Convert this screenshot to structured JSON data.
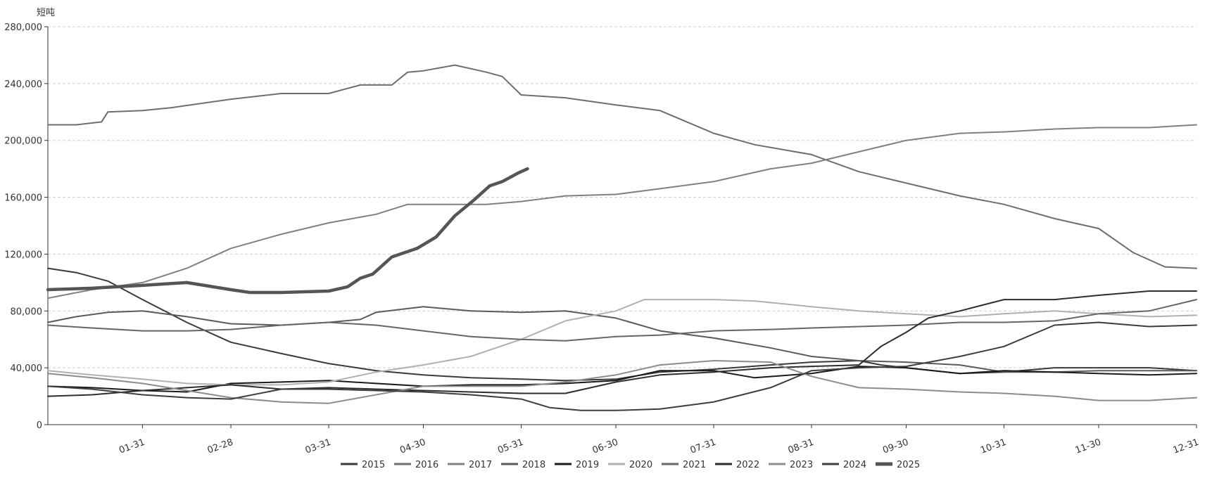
{
  "chart_data": {
    "type": "line",
    "title": "",
    "xlabel": "",
    "ylabel": "短吨",
    "ylim": [
      0,
      280000
    ],
    "yticks": [
      0,
      40000,
      80000,
      120000,
      160000,
      200000,
      240000,
      280000
    ],
    "ytick_labels": [
      "0",
      "40,000",
      "80,000",
      "120,000",
      "160,000",
      "200,000",
      "240,000",
      "280,000"
    ],
    "xlim": [
      1,
      365
    ],
    "xticks": [
      31,
      59,
      90,
      120,
      151,
      181,
      212,
      243,
      273,
      304,
      334,
      365
    ],
    "xtick_labels": [
      "01-31",
      "02-28",
      "03-31",
      "04-30",
      "05-31",
      "06-30",
      "07-31",
      "08-31",
      "09-30",
      "10-31",
      "11-30",
      "12-31"
    ],
    "grid": true,
    "legend_position": "bottom-center",
    "series": [
      {
        "name": "2015",
        "color": "#3a3a3a",
        "width": 2,
        "points": [
          [
            1,
            110000
          ],
          [
            10,
            107000
          ],
          [
            20,
            101000
          ],
          [
            31,
            88000
          ],
          [
            45,
            72000
          ],
          [
            59,
            58000
          ],
          [
            75,
            50000
          ],
          [
            90,
            43000
          ],
          [
            105,
            38000
          ],
          [
            120,
            35000
          ],
          [
            135,
            33000
          ],
          [
            151,
            32000
          ],
          [
            165,
            31000
          ],
          [
            181,
            32000
          ],
          [
            195,
            37000
          ],
          [
            212,
            39000
          ],
          [
            230,
            42000
          ],
          [
            243,
            44000
          ],
          [
            258,
            45000
          ],
          [
            265,
            42000
          ],
          [
            273,
            40000
          ],
          [
            290,
            36000
          ],
          [
            304,
            37000
          ],
          [
            320,
            40000
          ],
          [
            334,
            40000
          ],
          [
            350,
            40000
          ],
          [
            365,
            38000
          ]
        ]
      },
      {
        "name": "2016",
        "color": "#6e6e6e",
        "width": 2,
        "points": [
          [
            1,
            211000
          ],
          [
            10,
            211000
          ],
          [
            18,
            213000
          ],
          [
            20,
            220000
          ],
          [
            31,
            221000
          ],
          [
            40,
            223000
          ],
          [
            59,
            229000
          ],
          [
            75,
            233000
          ],
          [
            90,
            233000
          ],
          [
            100,
            239000
          ],
          [
            110,
            239000
          ],
          [
            115,
            248000
          ],
          [
            120,
            249000
          ],
          [
            130,
            253000
          ],
          [
            140,
            248000
          ],
          [
            145,
            245000
          ],
          [
            151,
            232000
          ],
          [
            165,
            230000
          ],
          [
            181,
            225000
          ],
          [
            195,
            221000
          ],
          [
            212,
            205000
          ],
          [
            225,
            197000
          ],
          [
            243,
            190000
          ],
          [
            258,
            178000
          ],
          [
            273,
            170000
          ],
          [
            290,
            161000
          ],
          [
            304,
            155000
          ],
          [
            320,
            145000
          ],
          [
            334,
            138000
          ],
          [
            345,
            121000
          ],
          [
            355,
            111000
          ],
          [
            365,
            110000
          ]
        ]
      },
      {
        "name": "2017",
        "color": "#808080",
        "width": 2,
        "points": [
          [
            1,
            89000
          ],
          [
            15,
            95000
          ],
          [
            31,
            100000
          ],
          [
            45,
            110000
          ],
          [
            59,
            124000
          ],
          [
            75,
            134000
          ],
          [
            90,
            142000
          ],
          [
            105,
            148000
          ],
          [
            115,
            155000
          ],
          [
            130,
            155000
          ],
          [
            140,
            155000
          ],
          [
            151,
            157000
          ],
          [
            165,
            161000
          ],
          [
            181,
            162000
          ],
          [
            195,
            166000
          ],
          [
            212,
            171000
          ],
          [
            230,
            180000
          ],
          [
            243,
            184000
          ],
          [
            258,
            192000
          ],
          [
            273,
            200000
          ],
          [
            290,
            205000
          ],
          [
            304,
            206000
          ],
          [
            320,
            208000
          ],
          [
            334,
            209000
          ],
          [
            350,
            209000
          ],
          [
            365,
            211000
          ]
        ]
      },
      {
        "name": "2018",
        "color": "#5a5a5a",
        "width": 2,
        "points": [
          [
            1,
            72000
          ],
          [
            10,
            76000
          ],
          [
            20,
            79000
          ],
          [
            31,
            80000
          ],
          [
            45,
            76000
          ],
          [
            59,
            71000
          ],
          [
            75,
            70000
          ],
          [
            90,
            72000
          ],
          [
            100,
            74000
          ],
          [
            105,
            79000
          ],
          [
            120,
            83000
          ],
          [
            135,
            80000
          ],
          [
            151,
            79000
          ],
          [
            165,
            80000
          ],
          [
            181,
            75000
          ],
          [
            195,
            66000
          ],
          [
            212,
            61000
          ],
          [
            230,
            54000
          ],
          [
            243,
            48000
          ],
          [
            258,
            45000
          ],
          [
            273,
            44000
          ],
          [
            290,
            42000
          ],
          [
            304,
            37000
          ],
          [
            320,
            37000
          ],
          [
            334,
            38000
          ],
          [
            350,
            38000
          ],
          [
            365,
            38000
          ]
        ]
      },
      {
        "name": "2019",
        "color": "#1a1a1a",
        "width": 2,
        "points": [
          [
            1,
            27000
          ],
          [
            15,
            26000
          ],
          [
            31,
            24000
          ],
          [
            45,
            23000
          ],
          [
            59,
            29000
          ],
          [
            75,
            30000
          ],
          [
            90,
            31000
          ],
          [
            105,
            29000
          ],
          [
            120,
            27000
          ],
          [
            135,
            28000
          ],
          [
            151,
            28000
          ],
          [
            165,
            29000
          ],
          [
            181,
            31000
          ],
          [
            195,
            38000
          ],
          [
            212,
            38000
          ],
          [
            225,
            33000
          ],
          [
            243,
            36000
          ],
          [
            258,
            41000
          ],
          [
            273,
            40000
          ],
          [
            290,
            36000
          ],
          [
            304,
            38000
          ],
          [
            320,
            37000
          ],
          [
            334,
            36000
          ],
          [
            350,
            35000
          ],
          [
            365,
            36000
          ]
        ]
      },
      {
        "name": "2020",
        "color": "#b0b0b0",
        "width": 2,
        "points": [
          [
            1,
            38000
          ],
          [
            15,
            35000
          ],
          [
            31,
            32000
          ],
          [
            45,
            29000
          ],
          [
            59,
            28000
          ],
          [
            75,
            28000
          ],
          [
            90,
            30000
          ],
          [
            105,
            37000
          ],
          [
            120,
            42000
          ],
          [
            135,
            48000
          ],
          [
            151,
            60000
          ],
          [
            165,
            73000
          ],
          [
            181,
            80000
          ],
          [
            190,
            88000
          ],
          [
            212,
            88000
          ],
          [
            225,
            87000
          ],
          [
            243,
            83000
          ],
          [
            258,
            80000
          ],
          [
            273,
            78000
          ],
          [
            290,
            76000
          ],
          [
            304,
            78000
          ],
          [
            320,
            80000
          ],
          [
            334,
            78000
          ],
          [
            350,
            76000
          ],
          [
            365,
            77000
          ]
        ]
      },
      {
        "name": "2021",
        "color": "#666666",
        "width": 2,
        "points": [
          [
            1,
            70000
          ],
          [
            15,
            68000
          ],
          [
            31,
            66000
          ],
          [
            45,
            66000
          ],
          [
            59,
            67000
          ],
          [
            75,
            70000
          ],
          [
            90,
            72000
          ],
          [
            105,
            70000
          ],
          [
            120,
            66000
          ],
          [
            135,
            62000
          ],
          [
            151,
            60000
          ],
          [
            165,
            59000
          ],
          [
            181,
            62000
          ],
          [
            195,
            63000
          ],
          [
            212,
            66000
          ],
          [
            230,
            67000
          ],
          [
            243,
            68000
          ],
          [
            258,
            69000
          ],
          [
            273,
            70000
          ],
          [
            290,
            72000
          ],
          [
            304,
            72000
          ],
          [
            320,
            73000
          ],
          [
            334,
            78000
          ],
          [
            350,
            80000
          ],
          [
            365,
            88000
          ]
        ]
      },
      {
        "name": "2022",
        "color": "#2e2e2e",
        "width": 2,
        "points": [
          [
            1,
            20000
          ],
          [
            15,
            21000
          ],
          [
            31,
            24000
          ],
          [
            45,
            26000
          ],
          [
            59,
            28000
          ],
          [
            75,
            25000
          ],
          [
            90,
            26000
          ],
          [
            105,
            25000
          ],
          [
            120,
            24000
          ],
          [
            135,
            23000
          ],
          [
            151,
            22000
          ],
          [
            165,
            22000
          ],
          [
            181,
            30000
          ],
          [
            195,
            35000
          ],
          [
            212,
            37000
          ],
          [
            230,
            40000
          ],
          [
            243,
            41000
          ],
          [
            258,
            42000
          ],
          [
            265,
            55000
          ],
          [
            273,
            65000
          ],
          [
            280,
            75000
          ],
          [
            290,
            80000
          ],
          [
            304,
            88000
          ],
          [
            320,
            88000
          ],
          [
            334,
            91000
          ],
          [
            350,
            94000
          ],
          [
            365,
            94000
          ]
        ]
      },
      {
        "name": "2023",
        "color": "#8c8c8c",
        "width": 2,
        "points": [
          [
            1,
            36000
          ],
          [
            15,
            33000
          ],
          [
            31,
            29000
          ],
          [
            45,
            24000
          ],
          [
            59,
            19000
          ],
          [
            75,
            16000
          ],
          [
            90,
            15000
          ],
          [
            105,
            21000
          ],
          [
            120,
            27000
          ],
          [
            135,
            27000
          ],
          [
            151,
            27000
          ],
          [
            165,
            30000
          ],
          [
            181,
            35000
          ],
          [
            195,
            42000
          ],
          [
            212,
            45000
          ],
          [
            230,
            44000
          ],
          [
            243,
            34000
          ],
          [
            258,
            26000
          ],
          [
            273,
            25000
          ],
          [
            290,
            23000
          ],
          [
            304,
            22000
          ],
          [
            320,
            20000
          ],
          [
            334,
            17000
          ],
          [
            350,
            17000
          ],
          [
            365,
            19000
          ]
        ]
      },
      {
        "name": "2024",
        "color": "#3d3d3d",
        "width": 2,
        "points": [
          [
            1,
            27000
          ],
          [
            15,
            25000
          ],
          [
            31,
            21000
          ],
          [
            45,
            19000
          ],
          [
            59,
            18000
          ],
          [
            75,
            25000
          ],
          [
            90,
            25000
          ],
          [
            105,
            24000
          ],
          [
            120,
            23000
          ],
          [
            135,
            21000
          ],
          [
            151,
            18000
          ],
          [
            160,
            12000
          ],
          [
            170,
            10000
          ],
          [
            181,
            10000
          ],
          [
            195,
            11000
          ],
          [
            212,
            16000
          ],
          [
            230,
            26000
          ],
          [
            243,
            38000
          ],
          [
            258,
            40000
          ],
          [
            273,
            41000
          ],
          [
            290,
            48000
          ],
          [
            304,
            55000
          ],
          [
            320,
            70000
          ],
          [
            334,
            72000
          ],
          [
            350,
            69000
          ],
          [
            365,
            70000
          ]
        ]
      },
      {
        "name": "2025",
        "color": "#555555",
        "width": 4.5,
        "points": [
          [
            1,
            95000
          ],
          [
            15,
            96000
          ],
          [
            31,
            98000
          ],
          [
            45,
            100000
          ],
          [
            59,
            95000
          ],
          [
            65,
            93000
          ],
          [
            75,
            93000
          ],
          [
            90,
            94000
          ],
          [
            96,
            97000
          ],
          [
            100,
            103000
          ],
          [
            104,
            106000
          ],
          [
            110,
            118000
          ],
          [
            118,
            124000
          ],
          [
            124,
            132000
          ],
          [
            130,
            147000
          ],
          [
            136,
            158000
          ],
          [
            141,
            168000
          ],
          [
            145,
            171000
          ],
          [
            150,
            177000
          ],
          [
            153,
            180000
          ]
        ]
      }
    ]
  }
}
